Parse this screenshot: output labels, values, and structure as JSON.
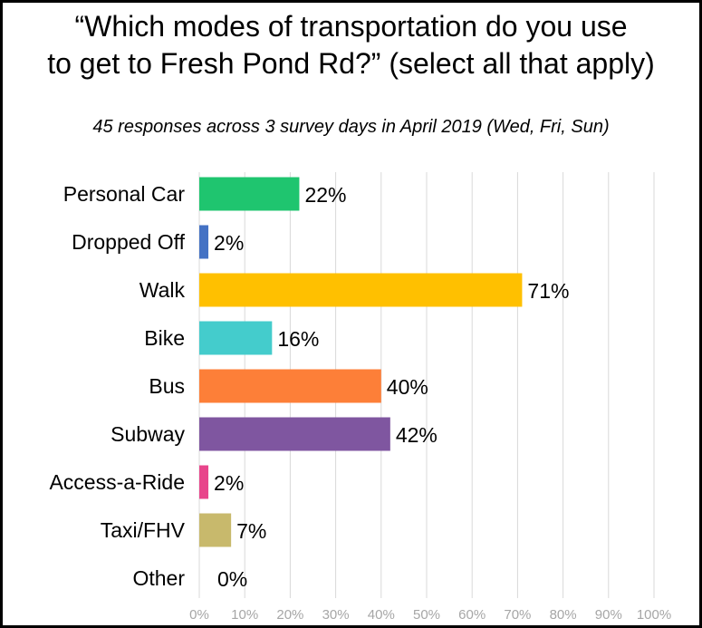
{
  "chart_data": {
    "type": "bar",
    "orientation": "horizontal",
    "title_lines": [
      "“Which modes of transportation do you use",
      "to get to Fresh Pond Rd?” (select all that apply)"
    ],
    "subtitle": "45 responses across 3 survey days in April 2019 (Wed, Fri, Sun)",
    "categories": [
      "Personal Car",
      "Dropped Off",
      "Walk",
      "Bike",
      "Bus",
      "Subway",
      "Access-a-Ride",
      "Taxi/FHV",
      "Other"
    ],
    "values": [
      22,
      2,
      71,
      16,
      40,
      42,
      2,
      7,
      0
    ],
    "value_labels": [
      "22%",
      "2%",
      "71%",
      "16%",
      "40%",
      "42%",
      "2%",
      "7%",
      "0%"
    ],
    "colors": [
      "#1fc56f",
      "#4472c4",
      "#ffc000",
      "#44cccc",
      "#fd7f38",
      "#7f56a0",
      "#e8458b",
      "#c8b96c",
      "#cccccc"
    ],
    "xlim": [
      0,
      100
    ],
    "x_ticks": [
      "0%",
      "10%",
      "20%",
      "30%",
      "40%",
      "50%",
      "60%",
      "70%",
      "80%",
      "90%",
      "100%"
    ],
    "grid": true
  }
}
